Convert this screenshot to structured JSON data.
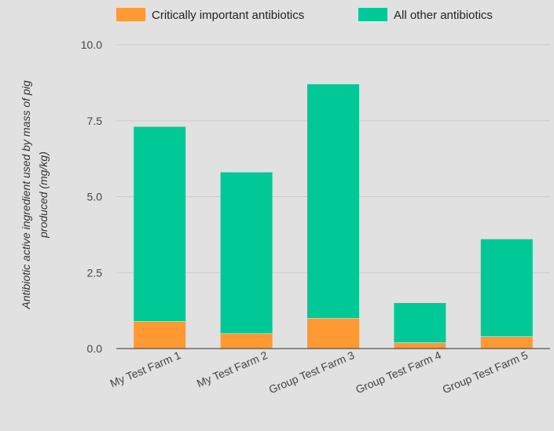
{
  "chart_data": {
    "type": "bar",
    "stacked": true,
    "categories": [
      "My Test Farm 1",
      "My Test Farm 2",
      "Group Test Farm 3",
      "Group Test Farm 4",
      "Group Test Farm 5"
    ],
    "series": [
      {
        "name": "Critically important antibiotics",
        "color": "#ff9933",
        "values": [
          0.9,
          0.5,
          1.0,
          0.2,
          0.4
        ]
      },
      {
        "name": "All other antibiotics",
        "color": "#00c896",
        "values": [
          6.4,
          5.3,
          7.7,
          1.3,
          3.2
        ]
      }
    ],
    "ylabel": [
      "Antibiotic active ingredient used by mass of pig",
      "produced (mg/kg)"
    ],
    "ylim": [
      0,
      10
    ],
    "yticks": [
      "0.0",
      "2.5",
      "5.0",
      "7.5",
      "10.0"
    ],
    "grid": true,
    "legend_position": "top"
  }
}
